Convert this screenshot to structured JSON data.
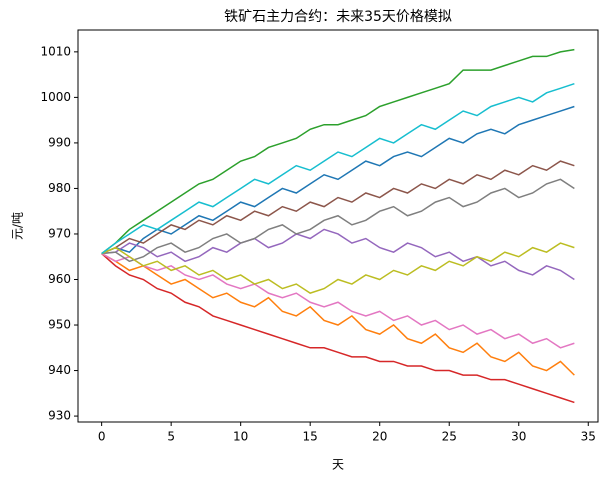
{
  "chart_data": {
    "type": "line",
    "title": "铁矿石主力合约：未来35天价格模拟",
    "x_label": "天",
    "y_label": "元/吨",
    "xlim": [
      -1.7,
      35.7
    ],
    "ylim": [
      928.7,
      1014.8
    ],
    "xticks": [
      0,
      5,
      10,
      15,
      20,
      25,
      30,
      35
    ],
    "yticks": [
      930,
      940,
      950,
      960,
      970,
      980,
      990,
      1000,
      1010
    ],
    "x": [
      0,
      1,
      2,
      3,
      4,
      5,
      6,
      7,
      8,
      9,
      10,
      11,
      12,
      13,
      14,
      15,
      16,
      17,
      18,
      19,
      20,
      21,
      22,
      23,
      24,
      25,
      26,
      27,
      28,
      29,
      30,
      31,
      32,
      33,
      34
    ],
    "series": [
      {
        "color": "#2ca02c",
        "values": [
          965.7,
          968,
          971,
          973,
          975,
          977,
          979,
          981,
          982,
          984,
          986,
          987,
          989,
          990,
          991,
          993,
          994,
          994,
          995,
          996,
          998,
          999,
          1000,
          1001,
          1002,
          1003,
          1006,
          1006,
          1006,
          1007,
          1008,
          1009,
          1009,
          1010,
          1010.5
        ]
      },
      {
        "color": "#d62728",
        "values": [
          965.7,
          963,
          961,
          960,
          958,
          957,
          955,
          954,
          952,
          951,
          950,
          949,
          948,
          947,
          946,
          945,
          945,
          944,
          943,
          943,
          942,
          942,
          941,
          941,
          940,
          940,
          939,
          939,
          938,
          938,
          937,
          936,
          935,
          934,
          933
        ]
      },
      {
        "color": "#1f77b4",
        "values": [
          965.7,
          967,
          966,
          969,
          971,
          970,
          972,
          974,
          973,
          975,
          977,
          976,
          978,
          980,
          979,
          981,
          983,
          982,
          984,
          986,
          985,
          987,
          988,
          987,
          989,
          991,
          990,
          992,
          993,
          992,
          994,
          995,
          996,
          997,
          998
        ]
      },
      {
        "color": "#ff7f0e",
        "values": [
          965.7,
          964,
          962,
          963,
          961,
          959,
          960,
          958,
          956,
          957,
          955,
          954,
          956,
          953,
          952,
          954,
          951,
          950,
          952,
          949,
          948,
          950,
          947,
          946,
          948,
          945,
          944,
          946,
          943,
          942,
          944,
          941,
          940,
          942,
          939
        ]
      },
      {
        "color": "#9467bd",
        "values": [
          965.7,
          966,
          968,
          967,
          965,
          966,
          964,
          965,
          967,
          966,
          968,
          969,
          967,
          968,
          970,
          969,
          971,
          970,
          968,
          969,
          967,
          966,
          968,
          967,
          965,
          966,
          964,
          965,
          963,
          964,
          962,
          961,
          963,
          962,
          960
        ]
      },
      {
        "color": "#8c564b",
        "values": [
          965.7,
          967,
          969,
          968,
          970,
          972,
          971,
          973,
          972,
          974,
          973,
          975,
          974,
          976,
          975,
          977,
          976,
          978,
          977,
          979,
          978,
          980,
          979,
          981,
          980,
          982,
          981,
          983,
          982,
          984,
          983,
          985,
          984,
          986,
          985
        ]
      },
      {
        "color": "#e377c2",
        "values": [
          965.7,
          964,
          965,
          963,
          962,
          963,
          961,
          960,
          961,
          959,
          958,
          959,
          957,
          956,
          957,
          955,
          954,
          955,
          953,
          952,
          953,
          951,
          952,
          950,
          951,
          949,
          950,
          948,
          949,
          947,
          948,
          946,
          947,
          945,
          946
        ]
      },
      {
        "color": "#7f7f7f",
        "values": [
          965.7,
          966,
          964,
          965,
          967,
          968,
          966,
          967,
          969,
          970,
          968,
          969,
          971,
          972,
          970,
          971,
          973,
          974,
          972,
          973,
          975,
          976,
          974,
          975,
          977,
          978,
          976,
          977,
          979,
          980,
          978,
          979,
          981,
          982,
          980
        ]
      },
      {
        "color": "#bcbd22",
        "values": [
          965.7,
          967,
          965,
          963,
          964,
          962,
          963,
          961,
          962,
          960,
          961,
          959,
          960,
          958,
          959,
          957,
          958,
          960,
          959,
          961,
          960,
          962,
          961,
          963,
          962,
          964,
          963,
          965,
          964,
          966,
          965,
          967,
          966,
          968,
          967
        ]
      },
      {
        "color": "#17becf",
        "values": [
          965.7,
          968,
          970,
          972,
          971,
          973,
          975,
          977,
          976,
          978,
          980,
          982,
          981,
          983,
          985,
          984,
          986,
          988,
          987,
          989,
          991,
          990,
          992,
          994,
          993,
          995,
          997,
          996,
          998,
          999,
          1000,
          999,
          1001,
          1002,
          1003
        ]
      }
    ]
  }
}
